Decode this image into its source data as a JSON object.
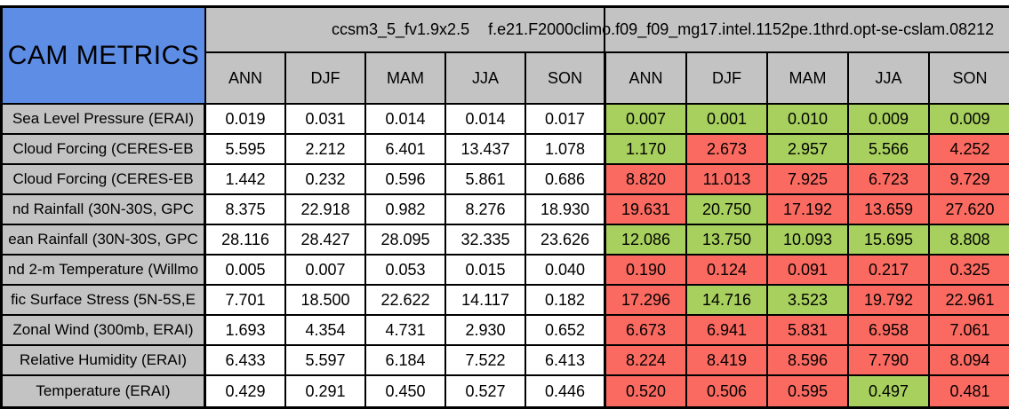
{
  "title": "CAM METRICS",
  "columns": {
    "group_a_label": "ccsm3_5_fv1.9x2.5",
    "group_b_label": "f.e21.F2000climo.f09_f09_mg17.intel.1152pe.1thrd.opt-se-cslam.08212",
    "seasons": [
      "ANN",
      "DJF",
      "MAM",
      "JJA",
      "SON"
    ]
  },
  "colors": {
    "blue": "#5E8DE6",
    "gray": "#C3C3C3",
    "green": "#A8D05E",
    "red": "#FA6A61"
  },
  "rows": [
    {
      "label": "Sea Level Pressure (ERAI)",
      "a": [
        "0.019",
        "0.031",
        "0.014",
        "0.014",
        "0.017"
      ],
      "b": [
        "0.007",
        "0.001",
        "0.010",
        "0.009",
        "0.009"
      ],
      "b_status": [
        "green",
        "green",
        "green",
        "green",
        "green"
      ]
    },
    {
      "label": "Cloud Forcing (CERES-EB",
      "a": [
        "5.595",
        "2.212",
        "6.401",
        "13.437",
        "1.078"
      ],
      "b": [
        "1.170",
        "2.673",
        "2.957",
        "5.566",
        "4.252"
      ],
      "b_status": [
        "green",
        "red",
        "green",
        "green",
        "red"
      ]
    },
    {
      "label": "Cloud Forcing (CERES-EB",
      "a": [
        "1.442",
        "0.232",
        "0.596",
        "5.861",
        "0.686"
      ],
      "b": [
        "8.820",
        "11.013",
        "7.925",
        "6.723",
        "9.729"
      ],
      "b_status": [
        "red",
        "red",
        "red",
        "red",
        "red"
      ]
    },
    {
      "label": "nd Rainfall (30N-30S, GPC",
      "a": [
        "8.375",
        "22.918",
        "0.982",
        "8.276",
        "18.930"
      ],
      "b": [
        "19.631",
        "20.750",
        "17.192",
        "13.659",
        "27.620"
      ],
      "b_status": [
        "red",
        "green",
        "red",
        "red",
        "red"
      ]
    },
    {
      "label": "ean Rainfall (30N-30S, GPC",
      "a": [
        "28.116",
        "28.427",
        "28.095",
        "32.335",
        "23.626"
      ],
      "b": [
        "12.086",
        "13.750",
        "10.093",
        "15.695",
        "8.808"
      ],
      "b_status": [
        "green",
        "green",
        "green",
        "green",
        "green"
      ]
    },
    {
      "label": "nd 2-m Temperature (Willmo",
      "a": [
        "0.005",
        "0.007",
        "0.053",
        "0.015",
        "0.040"
      ],
      "b": [
        "0.190",
        "0.124",
        "0.091",
        "0.217",
        "0.325"
      ],
      "b_status": [
        "red",
        "red",
        "red",
        "red",
        "red"
      ]
    },
    {
      "label": "fic Surface Stress (5N-5S,E",
      "a": [
        "7.701",
        "18.500",
        "22.622",
        "14.117",
        "0.182"
      ],
      "b": [
        "17.296",
        "14.716",
        "3.523",
        "19.792",
        "22.961"
      ],
      "b_status": [
        "red",
        "green",
        "green",
        "red",
        "red"
      ]
    },
    {
      "label": "Zonal Wind (300mb, ERAI)",
      "a": [
        "1.693",
        "4.354",
        "4.731",
        "2.930",
        "0.652"
      ],
      "b": [
        "6.673",
        "6.941",
        "5.831",
        "6.958",
        "7.061"
      ],
      "b_status": [
        "red",
        "red",
        "red",
        "red",
        "red"
      ]
    },
    {
      "label": "Relative Humidity (ERAI)",
      "a": [
        "6.433",
        "5.597",
        "6.184",
        "7.522",
        "6.413"
      ],
      "b": [
        "8.224",
        "8.419",
        "8.596",
        "7.790",
        "8.094"
      ],
      "b_status": [
        "red",
        "red",
        "red",
        "red",
        "red"
      ]
    },
    {
      "label": "Temperature (ERAI)",
      "a": [
        "0.429",
        "0.291",
        "0.450",
        "0.527",
        "0.446"
      ],
      "b": [
        "0.520",
        "0.506",
        "0.595",
        "0.497",
        "0.481"
      ],
      "b_status": [
        "red",
        "red",
        "red",
        "green",
        "red"
      ]
    }
  ]
}
